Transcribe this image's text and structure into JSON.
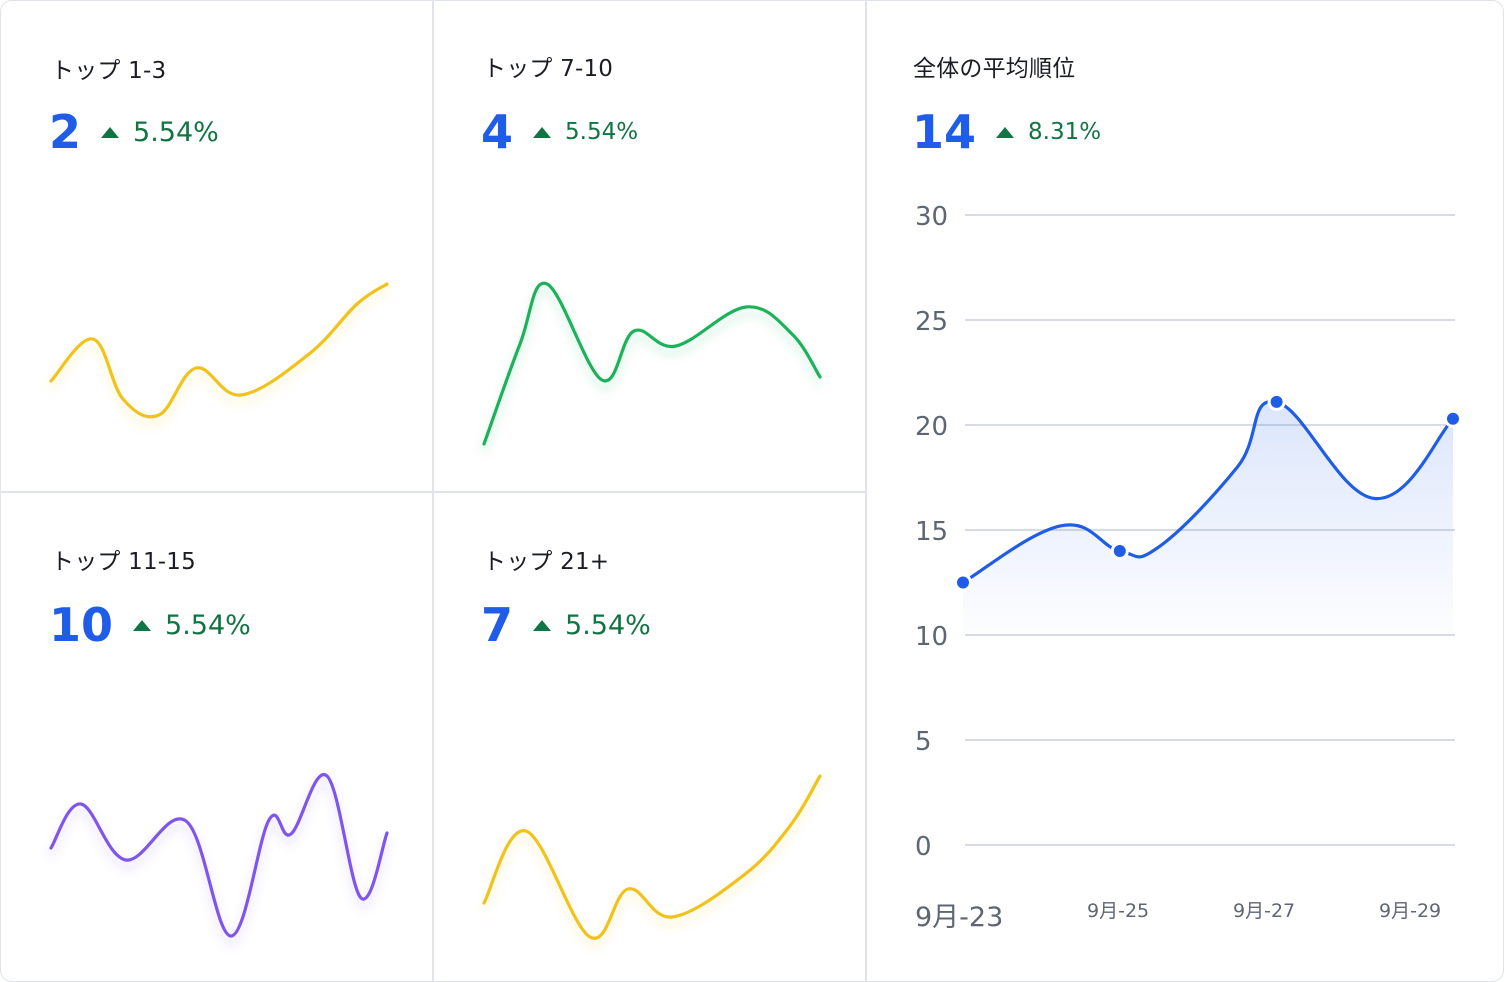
{
  "cards": [
    {
      "title": "トップ 1-3",
      "value": "2",
      "change": "5.54%",
      "color": "#f2c21a",
      "points": [
        [
          0,
          97
        ],
        [
          42,
          55
        ],
        [
          72,
          115
        ],
        [
          108,
          131
        ],
        [
          145,
          84
        ],
        [
          190,
          111
        ],
        [
          258,
          70
        ],
        [
          306,
          20
        ],
        [
          336,
          0
        ]
      ]
    },
    {
      "title": "トップ 7-10",
      "value": "4",
      "change": "5.54%",
      "color": "#1fb25a",
      "points": [
        [
          0,
          160
        ],
        [
          36,
          60
        ],
        [
          63,
          0
        ],
        [
          118,
          96
        ],
        [
          150,
          47
        ],
        [
          192,
          62
        ],
        [
          262,
          23
        ],
        [
          308,
          50
        ],
        [
          336,
          93
        ]
      ]
    },
    {
      "title": "トップ 11-15",
      "value": "10",
      "change": "5.54%",
      "color": "#7e56ee",
      "points": [
        [
          0,
          72
        ],
        [
          30,
          28
        ],
        [
          75,
          84
        ],
        [
          135,
          45
        ],
        [
          180,
          160
        ],
        [
          218,
          44
        ],
        [
          240,
          58
        ],
        [
          276,
          0
        ],
        [
          310,
          122
        ],
        [
          336,
          57
        ]
      ]
    },
    {
      "title": "トップ 21+",
      "value": "7",
      "change": "5.54%",
      "color": "#f2c21a",
      "points": [
        [
          0,
          127
        ],
        [
          42,
          55
        ],
        [
          106,
          161
        ],
        [
          144,
          113
        ],
        [
          188,
          141
        ],
        [
          260,
          99
        ],
        [
          306,
          50
        ],
        [
          336,
          0
        ]
      ]
    }
  ],
  "main": {
    "title": "全体の平均順位",
    "value": "14",
    "change": "8.31%",
    "accent": "#1f5de8",
    "change_color": "#107443"
  },
  "chart_data": {
    "type": "area",
    "title": "全体の平均順位",
    "xlabel": "",
    "ylabel": "",
    "ylim": [
      0,
      30
    ],
    "yticks": [
      0,
      5,
      10,
      15,
      20,
      25,
      30
    ],
    "x_tick_labels": [
      "9月-23",
      "9月-25",
      "9月-27",
      "9月-29"
    ],
    "series": [
      {
        "values": [
          {
            "x": 0,
            "y": 12.5
          },
          {
            "x": 1,
            "y": 15.2
          },
          {
            "x": 1.6,
            "y": 14.0
          },
          {
            "x": 2,
            "y": 14.2
          },
          {
            "x": 2.8,
            "y": 18.0
          },
          {
            "x": 3.2,
            "y": 21.1
          },
          {
            "x": 4.2,
            "y": 16.5
          },
          {
            "x": 5,
            "y": 20.3
          }
        ],
        "markers": [
          0,
          2,
          5,
          7
        ]
      }
    ],
    "grid": true
  }
}
